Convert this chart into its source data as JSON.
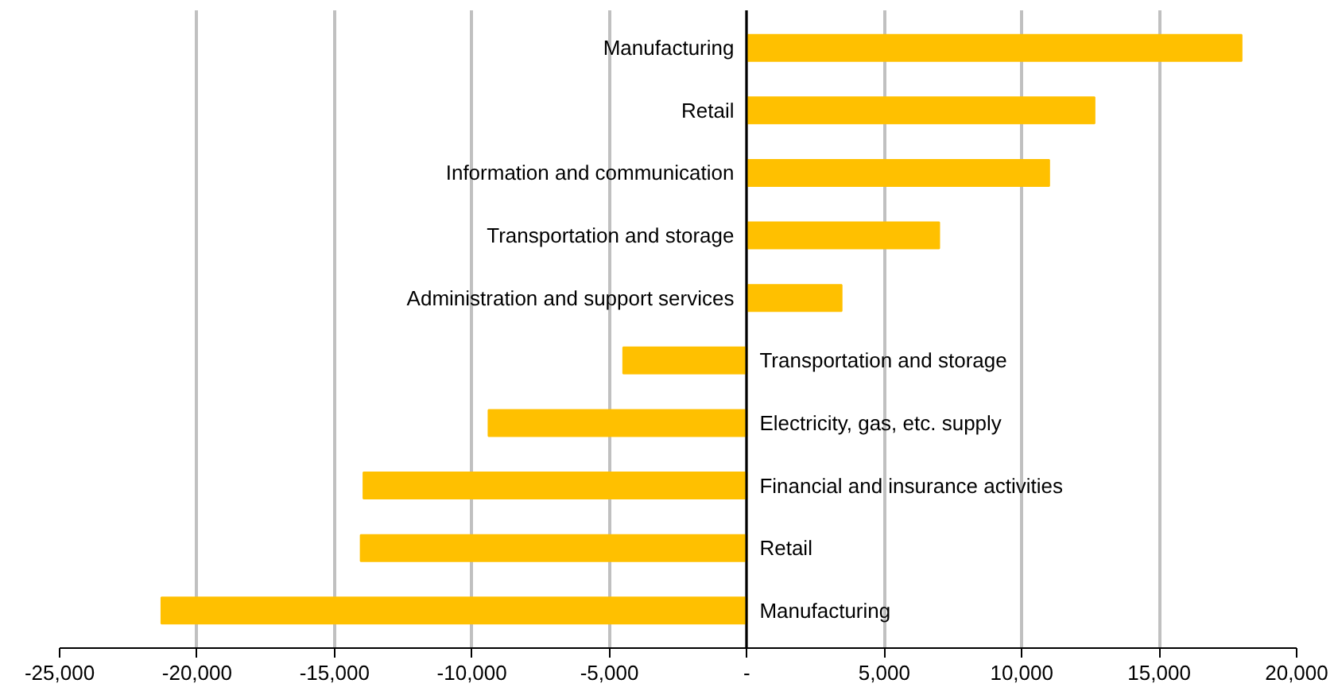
{
  "chart_data": {
    "type": "bar",
    "orientation": "horizontal",
    "categories": [
      "Manufacturing",
      "Retail",
      "Information and communication",
      "Transportation and storage",
      "Administration and support services",
      "Transportation and storage",
      "Electricity, gas, etc. supply",
      "Financial and insurance activities",
      "Retail",
      "Manufacturing"
    ],
    "values": [
      18000,
      12650,
      11000,
      7000,
      3450,
      -4500,
      -9400,
      -13950,
      -14050,
      -21300
    ],
    "color": "#ffc000",
    "xlim": [
      -25000,
      20000
    ],
    "xticks": [
      {
        "value": -25000,
        "label": "-25,000"
      },
      {
        "value": -20000,
        "label": "-20,000"
      },
      {
        "value": -15000,
        "label": "-15,000"
      },
      {
        "value": -10000,
        "label": "-10,000"
      },
      {
        "value": -5000,
        "label": "-5,000"
      },
      {
        "value": 0,
        "label": "-"
      },
      {
        "value": 5000,
        "label": "5,000"
      },
      {
        "value": 10000,
        "label": "10,000"
      },
      {
        "value": 15000,
        "label": "15,000"
      },
      {
        "value": 20000,
        "label": "20,000"
      }
    ],
    "grid": "x",
    "tick_labels": "x"
  }
}
